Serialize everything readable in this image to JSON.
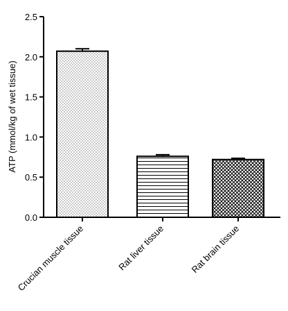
{
  "chart_data": {
    "type": "bar",
    "title": "",
    "xlabel": "",
    "ylabel": "ATP (mmol/kg of wet tissue)",
    "categories": [
      "Crucian muscle tissue",
      "Rat liver tissue",
      "Rat brain tissue"
    ],
    "values": [
      2.07,
      0.76,
      0.72
    ],
    "errors": [
      0.03,
      0.02,
      0.015
    ],
    "patterns": [
      "dots",
      "horizontal-lines",
      "crosshatch"
    ],
    "ylim": [
      0,
      2.5
    ],
    "yticks": [
      0.0,
      0.5,
      1.0,
      1.5,
      2.0,
      2.5
    ],
    "ytick_labels": [
      "0.0",
      "0.5",
      "1.0",
      "1.5",
      "2.0",
      "2.5"
    ],
    "grid": false,
    "error_bars": true
  }
}
